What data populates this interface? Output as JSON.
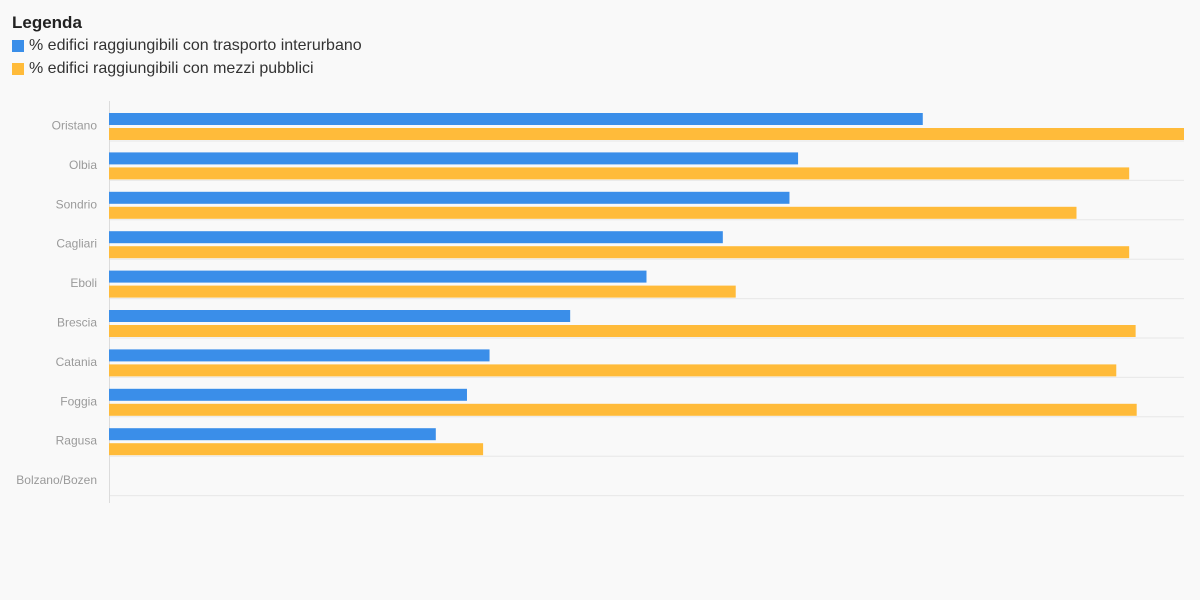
{
  "legend": {
    "title": "Legenda"
  },
  "colors": {
    "series1": "#3a8ee9",
    "series2": "#ffbb3a",
    "grid": "#e8e8e8",
    "axis": "#dcdcdc"
  },
  "chart_data": {
    "type": "bar",
    "orientation": "horizontal",
    "legend_position": "top-left",
    "grid": true,
    "xlim": [
      0,
      100
    ],
    "categories": [
      "Oristano",
      "Olbia",
      "Sondrio",
      "Cagliari",
      "Eboli",
      "Brescia",
      "Catania",
      "Foggia",
      "Ragusa",
      "Bolzano/Bozen"
    ],
    "series": [
      {
        "name": "% edifici raggiungibili con trasporto interurbano",
        "values": [
          75.7,
          64.1,
          63.3,
          57.1,
          50.0,
          42.9,
          35.4,
          33.3,
          30.4,
          0
        ]
      },
      {
        "name": "% edifici raggiungibili con mezzi pubblici",
        "values": [
          100.0,
          94.9,
          90.0,
          94.9,
          58.3,
          95.5,
          93.7,
          95.6,
          34.8,
          0
        ]
      }
    ]
  }
}
